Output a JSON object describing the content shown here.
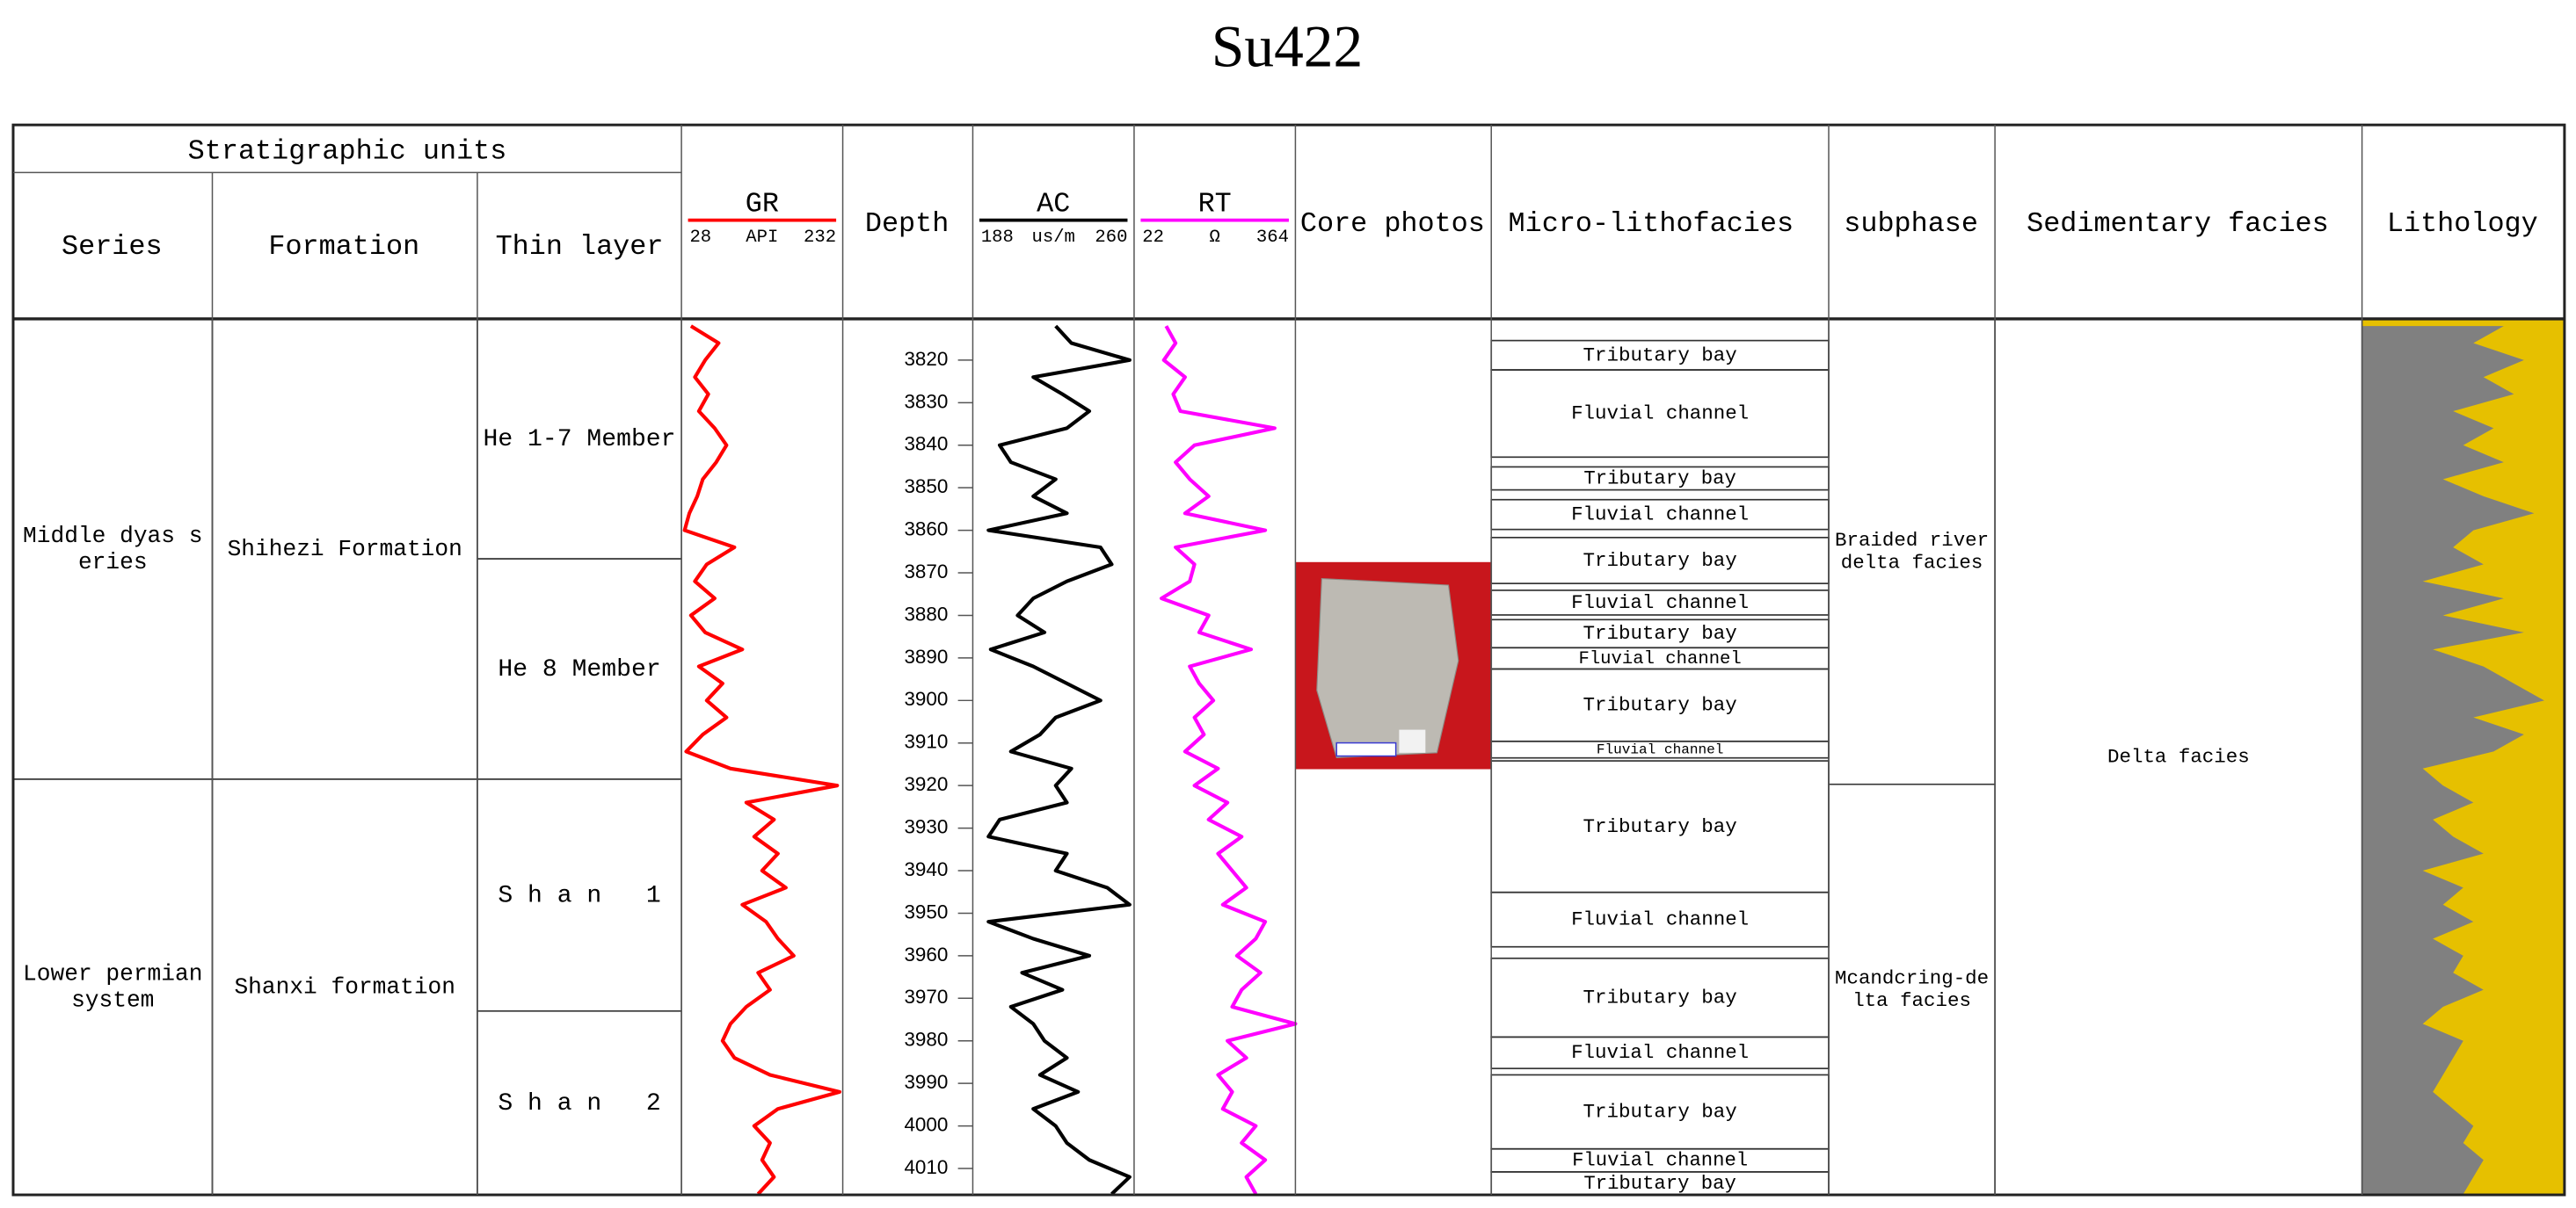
{
  "chart_data": {
    "type": "log",
    "title": "Su422",
    "header": {
      "stratigraphic_units": "Stratigraphic units",
      "series": "Series",
      "formation": "Formation",
      "thin_layer": "Thin layer",
      "depth": "Depth",
      "core_photos": "Core photos",
      "micro_lithofacies": "Micro-lithofacies",
      "subphase": "subphase",
      "sedimentary_facies": "Sedimentary facies",
      "lithology": "Lithology"
    },
    "ylim": [
      3810.3,
      4016.2
    ],
    "yticks": [
      3820,
      3830,
      3840,
      3850,
      3860,
      3870,
      3880,
      3890,
      3900,
      3910,
      3920,
      3930,
      3940,
      3950,
      3960,
      3970,
      3980,
      3990,
      4000,
      4010
    ],
    "depths": [
      3812,
      3816,
      3820,
      3824,
      3828,
      3832,
      3836,
      3840,
      3844,
      3848,
      3852,
      3856,
      3860,
      3864,
      3868,
      3872,
      3876,
      3880,
      3884,
      3888,
      3892,
      3896,
      3900,
      3904,
      3908,
      3912,
      3916,
      3920,
      3924,
      3928,
      3932,
      3936,
      3940,
      3944,
      3948,
      3952,
      3956,
      3960,
      3964,
      3968,
      3972,
      3976,
      3980,
      3984,
      3988,
      3992,
      3996,
      4000,
      4004,
      4008,
      4012,
      4016
    ],
    "curves": [
      {
        "name": "GR",
        "unit": "API",
        "color": "#ff0000",
        "xlim": [
          28,
          232
        ],
        "values": [
          40,
          75,
          58,
          45,
          62,
          50,
          70,
          85,
          72,
          55,
          48,
          38,
          32,
          95,
          60,
          45,
          70,
          40,
          58,
          105,
          50,
          80,
          60,
          85,
          55,
          34,
          90,
          225,
          110,
          145,
          120,
          150,
          130,
          160,
          105,
          135,
          150,
          170,
          125,
          140,
          110,
          90,
          80,
          95,
          140,
          228,
          150,
          120,
          140,
          130,
          145,
          125
        ]
      },
      {
        "name": "AC",
        "unit": "us/m",
        "color": "#000000",
        "xlim": [
          188,
          260
        ],
        "values": [
          225,
          232,
          258,
          215,
          228,
          240,
          230,
          200,
          205,
          225,
          215,
          230,
          195,
          245,
          250,
          230,
          215,
          208,
          220,
          196,
          215,
          230,
          245,
          225,
          218,
          205,
          232,
          225,
          230,
          200,
          195,
          230,
          225,
          248,
          258,
          195,
          215,
          240,
          210,
          228,
          205,
          215,
          220,
          230,
          218,
          235,
          215,
          225,
          230,
          240,
          258,
          250
        ]
      },
      {
        "name": "RT",
        "unit": "Ω",
        "color": "#ff00ff",
        "xlim": [
          22,
          364
        ],
        "values": [
          90,
          110,
          85,
          130,
          105,
          120,
          320,
          150,
          110,
          140,
          180,
          130,
          300,
          110,
          150,
          140,
          80,
          180,
          160,
          270,
          140,
          160,
          190,
          150,
          170,
          130,
          200,
          150,
          220,
          180,
          250,
          200,
          230,
          260,
          210,
          300,
          280,
          240,
          290,
          250,
          230,
          364,
          220,
          260,
          200,
          230,
          210,
          280,
          250,
          300,
          260,
          280
        ]
      }
    ],
    "series_units": [
      {
        "lines": [
          "Middle dyas s",
          "eries"
        ],
        "top": 3810.3,
        "bottom": 3918.5
      },
      {
        "lines": [
          "Lower permian",
          "system"
        ],
        "top": 3918.5,
        "bottom": 4016.2
      }
    ],
    "formations": [
      {
        "lines": [
          "Shihezi Formation"
        ],
        "top": 3810.3,
        "bottom": 3918.5
      },
      {
        "lines": [
          "Shanxi formation"
        ],
        "top": 3918.5,
        "bottom": 4016.2
      }
    ],
    "thin_layers": [
      {
        "lines": [
          "He 1-7 Member"
        ],
        "top": 3810.3,
        "bottom": 3866.7
      },
      {
        "lines": [
          "He 8 Member"
        ],
        "top": 3866.7,
        "bottom": 3918.5
      },
      {
        "lines": [
          "S h a n   1"
        ],
        "top": 3918.5,
        "bottom": 3973.0
      },
      {
        "lines": [
          "S h a n   2"
        ],
        "top": 3973.0,
        "bottom": 4016.2
      }
    ],
    "microfacies": [
      {
        "label": "Tributary bay",
        "top": 3815.4,
        "bottom": 3822.3
      },
      {
        "label": "Fluvial channel",
        "top": 3822.3,
        "bottom": 3842.8
      },
      {
        "label": "Tributary bay",
        "top": 3845.1,
        "bottom": 3850.5
      },
      {
        "label": "Fluvial channel",
        "top": 3852.8,
        "bottom": 3859.8
      },
      {
        "label": "Tributary bay",
        "top": 3861.7,
        "bottom": 3872.5
      },
      {
        "label": "Fluvial channel",
        "top": 3874.1,
        "bottom": 3879.9
      },
      {
        "label": "Tributary bay",
        "top": 3881.0,
        "bottom": 3887.6
      },
      {
        "label": "Fluvial channel",
        "top": 3887.6,
        "bottom": 3892.6
      },
      {
        "label": "Tributary bay",
        "top": 3892.6,
        "bottom": 3909.6
      },
      {
        "label": "Fluvial channel",
        "top": 3909.6,
        "bottom": 3913.5
      },
      {
        "label": "Tributary bay",
        "top": 3914.2,
        "bottom": 3945.1
      },
      {
        "label": "Fluvial channel",
        "top": 3945.1,
        "bottom": 3957.9
      },
      {
        "label": "Tributary bay",
        "top": 3960.6,
        "bottom": 3979.1
      },
      {
        "label": "Fluvial channel",
        "top": 3979.1,
        "bottom": 3986.5
      },
      {
        "label": "Tributary bay",
        "top": 3988.0,
        "bottom": 4005.4
      },
      {
        "label": "Fluvial channel",
        "top": 4005.4,
        "bottom": 4010.8
      },
      {
        "label": "Tributary bay",
        "top": 4010.8,
        "bottom": 4016.2
      }
    ],
    "subphases": [
      {
        "lines": [
          "Braided river",
          "delta facies"
        ],
        "top": 3810.3,
        "bottom": 3919.7
      },
      {
        "lines": [
          "Mcandcring-de",
          "lta facies"
        ],
        "top": 3919.7,
        "bottom": 4016.2
      }
    ],
    "sedimentary_facies": [
      {
        "lines": [
          "Delta facies"
        ],
        "top": 3810.3,
        "bottom": 4016.2
      }
    ],
    "lithology": {
      "shale_color": "#808080",
      "sand_color": "#e6c000",
      "values": [
        70,
        55,
        80,
        60,
        75,
        45,
        65,
        50,
        70,
        40,
        60,
        85,
        55,
        45,
        60,
        30,
        70,
        40,
        80,
        35,
        60,
        75,
        90,
        55,
        80,
        65,
        30,
        40,
        55,
        35,
        45,
        60,
        30,
        50,
        40,
        55,
        35,
        50,
        45,
        60,
        40,
        30,
        50,
        45,
        40,
        35,
        45,
        55,
        50,
        60,
        55,
        50
      ]
    }
  }
}
